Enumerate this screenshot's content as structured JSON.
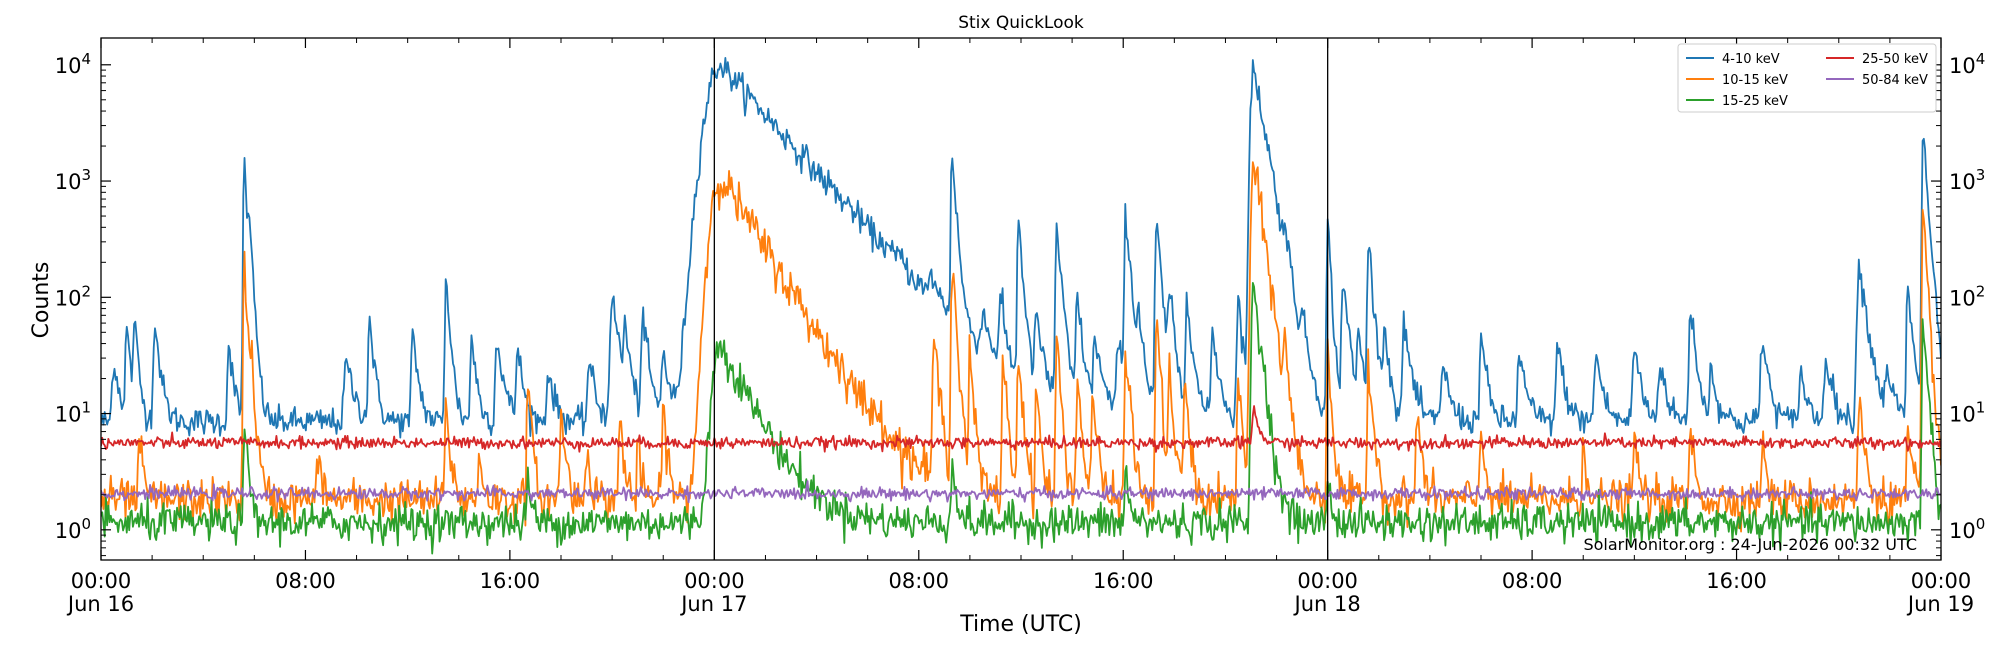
{
  "chart_data": {
    "type": "line",
    "title": "Stix QuickLook",
    "xlabel": "Time (UTC)",
    "ylabel": "Counts",
    "yscale": "log",
    "ylim": [
      0.55,
      17000
    ],
    "y_ticks": [
      {
        "value": 1,
        "base": "10",
        "exp": "0"
      },
      {
        "value": 10,
        "base": "10",
        "exp": "1"
      },
      {
        "value": 100,
        "base": "10",
        "exp": "2"
      },
      {
        "value": 1000,
        "base": "10",
        "exp": "3"
      },
      {
        "value": 10000,
        "base": "10",
        "exp": "4"
      }
    ],
    "x_range": [
      "Jun 16 00:00",
      "Jun 19 00:00"
    ],
    "x_ticks": [
      {
        "hour": 0,
        "time": "00:00",
        "date": "Jun 16"
      },
      {
        "hour": 8,
        "time": "08:00",
        "date": ""
      },
      {
        "hour": 16,
        "time": "16:00",
        "date": ""
      },
      {
        "hour": 24,
        "time": "00:00",
        "date": "Jun 17"
      },
      {
        "hour": 32,
        "time": "08:00",
        "date": ""
      },
      {
        "hour": 40,
        "time": "16:00",
        "date": ""
      },
      {
        "hour": 48,
        "time": "00:00",
        "date": "Jun 18"
      },
      {
        "hour": 56,
        "time": "08:00",
        "date": ""
      },
      {
        "hour": 64,
        "time": "16:00",
        "date": ""
      },
      {
        "hour": 72,
        "time": "00:00",
        "date": "Jun 19"
      }
    ],
    "day_boundaries": [
      "Jun 17 00:00",
      "Jun 18 00:00"
    ],
    "grid": false,
    "legend_position": "top-right",
    "annotation": "SolarMonitor.org : 24-Jun-2026 00:32 UTC",
    "series": [
      {
        "name": "4-10 keV",
        "color": "#1f77b4",
        "baseline": 8.5,
        "noise": 0.06,
        "peaks": [
          {
            "h": 0.5,
            "a": 20,
            "w": 0.1
          },
          {
            "h": 1.0,
            "a": 50,
            "w": 0.06
          },
          {
            "h": 1.3,
            "a": 55,
            "w": 0.06
          },
          {
            "h": 2.1,
            "a": 55,
            "w": 0.08
          },
          {
            "h": 5.0,
            "a": 35,
            "w": 0.07
          },
          {
            "h": 5.6,
            "a": 1600,
            "w": 0.05
          },
          {
            "h": 5.8,
            "a": 200,
            "w": 0.06
          },
          {
            "h": 9.6,
            "a": 20,
            "w": 0.12
          },
          {
            "h": 10.5,
            "a": 60,
            "w": 0.07
          },
          {
            "h": 12.2,
            "a": 40,
            "w": 0.08
          },
          {
            "h": 13.5,
            "a": 150,
            "w": 0.06
          },
          {
            "h": 14.5,
            "a": 40,
            "w": 0.07
          },
          {
            "h": 15.5,
            "a": 35,
            "w": 0.1
          },
          {
            "h": 16.3,
            "a": 30,
            "w": 0.08
          },
          {
            "h": 17.5,
            "a": 15,
            "w": 0.1
          },
          {
            "h": 19.1,
            "a": 20,
            "w": 0.1
          },
          {
            "h": 20.0,
            "a": 90,
            "w": 0.12
          },
          {
            "h": 20.5,
            "a": 40,
            "w": 0.08
          },
          {
            "h": 21.2,
            "a": 60,
            "w": 0.09
          },
          {
            "h": 22.0,
            "a": 25,
            "w": 0.1
          },
          {
            "h": 23.9,
            "a": 80,
            "w": 0.06
          },
          {
            "h": 24.25,
            "a": 10000,
            "w": 0.8
          },
          {
            "h": 25.6,
            "a": 30,
            "w": 0.15
          },
          {
            "h": 26.6,
            "a": 15,
            "w": 0.1
          },
          {
            "h": 27.5,
            "a": 20,
            "w": 0.12
          },
          {
            "h": 28.5,
            "a": 30,
            "w": 0.12
          },
          {
            "h": 29.3,
            "a": 40,
            "w": 0.09
          },
          {
            "h": 30.6,
            "a": 20,
            "w": 0.12
          },
          {
            "h": 31.2,
            "a": 40,
            "w": 0.1
          },
          {
            "h": 32.5,
            "a": 60,
            "w": 0.12
          },
          {
            "h": 33.3,
            "a": 1800,
            "w": 0.06
          },
          {
            "h": 34.5,
            "a": 40,
            "w": 0.1
          },
          {
            "h": 35.2,
            "a": 80,
            "w": 0.07
          },
          {
            "h": 35.9,
            "a": 500,
            "w": 0.06
          },
          {
            "h": 36.6,
            "a": 60,
            "w": 0.08
          },
          {
            "h": 37.4,
            "a": 400,
            "w": 0.07
          },
          {
            "h": 38.2,
            "a": 90,
            "w": 0.08
          },
          {
            "h": 38.9,
            "a": 35,
            "w": 0.1
          },
          {
            "h": 39.8,
            "a": 35,
            "w": 0.08
          },
          {
            "h": 40.1,
            "a": 550,
            "w": 0.07
          },
          {
            "h": 40.6,
            "a": 60,
            "w": 0.08
          },
          {
            "h": 41.3,
            "a": 450,
            "w": 0.07
          },
          {
            "h": 41.8,
            "a": 100,
            "w": 0.08
          },
          {
            "h": 42.5,
            "a": 100,
            "w": 0.08
          },
          {
            "h": 43.5,
            "a": 40,
            "w": 0.1
          },
          {
            "h": 44.5,
            "a": 90,
            "w": 0.08
          },
          {
            "h": 45.1,
            "a": 10000,
            "w": 0.15
          },
          {
            "h": 45.6,
            "a": 300,
            "w": 0.1
          },
          {
            "h": 46.3,
            "a": 200,
            "w": 0.08
          },
          {
            "h": 47.0,
            "a": 30,
            "w": 0.1
          },
          {
            "h": 48.0,
            "a": 450,
            "w": 0.05
          },
          {
            "h": 48.6,
            "a": 150,
            "w": 0.08
          },
          {
            "h": 49.2,
            "a": 40,
            "w": 0.08
          },
          {
            "h": 49.6,
            "a": 300,
            "w": 0.07
          },
          {
            "h": 50.2,
            "a": 50,
            "w": 0.08
          },
          {
            "h": 51.0,
            "a": 50,
            "w": 0.1
          },
          {
            "h": 52.5,
            "a": 20,
            "w": 0.1
          },
          {
            "h": 54.0,
            "a": 40,
            "w": 0.08
          },
          {
            "h": 55.5,
            "a": 25,
            "w": 0.1
          },
          {
            "h": 57.0,
            "a": 30,
            "w": 0.1
          },
          {
            "h": 58.5,
            "a": 25,
            "w": 0.1
          },
          {
            "h": 60.0,
            "a": 30,
            "w": 0.1
          },
          {
            "h": 61.0,
            "a": 20,
            "w": 0.1
          },
          {
            "h": 62.2,
            "a": 80,
            "w": 0.08
          },
          {
            "h": 63.0,
            "a": 15,
            "w": 0.1
          },
          {
            "h": 65.0,
            "a": 35,
            "w": 0.1
          },
          {
            "h": 66.5,
            "a": 15,
            "w": 0.1
          },
          {
            "h": 67.5,
            "a": 25,
            "w": 0.1
          },
          {
            "h": 68.8,
            "a": 180,
            "w": 0.12
          },
          {
            "h": 69.9,
            "a": 15,
            "w": 0.1
          },
          {
            "h": 70.7,
            "a": 120,
            "w": 0.07
          },
          {
            "h": 71.3,
            "a": 2900,
            "w": 0.06
          },
          {
            "h": 71.7,
            "a": 40,
            "w": 0.08
          }
        ]
      },
      {
        "name": "10-15 keV",
        "color": "#ff7f0e",
        "baseline": 1.8,
        "noise": 0.09,
        "peaks": [
          {
            "h": 1.5,
            "a": 4,
            "w": 0.06
          },
          {
            "h": 5.6,
            "a": 210,
            "w": 0.05
          },
          {
            "h": 5.9,
            "a": 15,
            "w": 0.06
          },
          {
            "h": 8.5,
            "a": 3,
            "w": 0.06
          },
          {
            "h": 13.5,
            "a": 10,
            "w": 0.06
          },
          {
            "h": 14.8,
            "a": 3,
            "w": 0.06
          },
          {
            "h": 16.7,
            "a": 20,
            "w": 0.05
          },
          {
            "h": 18.0,
            "a": 10,
            "w": 0.06
          },
          {
            "h": 19.0,
            "a": 4,
            "w": 0.06
          },
          {
            "h": 20.3,
            "a": 8,
            "w": 0.06
          },
          {
            "h": 21.0,
            "a": 3,
            "w": 0.06
          },
          {
            "h": 22.0,
            "a": 10,
            "w": 0.06
          },
          {
            "h": 23.9,
            "a": 10,
            "w": 0.06
          },
          {
            "h": 24.25,
            "a": 1100,
            "w": 0.55
          },
          {
            "h": 26.5,
            "a": 4,
            "w": 0.06
          },
          {
            "h": 29.0,
            "a": 6,
            "w": 0.06
          },
          {
            "h": 30.5,
            "a": 4,
            "w": 0.06
          },
          {
            "h": 32.6,
            "a": 40,
            "w": 0.08
          },
          {
            "h": 33.3,
            "a": 210,
            "w": 0.06
          },
          {
            "h": 34.0,
            "a": 30,
            "w": 0.06
          },
          {
            "h": 35.3,
            "a": 30,
            "w": 0.06
          },
          {
            "h": 35.9,
            "a": 35,
            "w": 0.06
          },
          {
            "h": 36.6,
            "a": 15,
            "w": 0.06
          },
          {
            "h": 37.4,
            "a": 40,
            "w": 0.06
          },
          {
            "h": 38.2,
            "a": 20,
            "w": 0.06
          },
          {
            "h": 38.8,
            "a": 15,
            "w": 0.06
          },
          {
            "h": 40.1,
            "a": 40,
            "w": 0.06
          },
          {
            "h": 41.3,
            "a": 60,
            "w": 0.06
          },
          {
            "h": 41.8,
            "a": 20,
            "w": 0.06
          },
          {
            "h": 42.4,
            "a": 20,
            "w": 0.06
          },
          {
            "h": 44.5,
            "a": 20,
            "w": 0.06
          },
          {
            "h": 45.1,
            "a": 1500,
            "w": 0.12
          },
          {
            "h": 45.6,
            "a": 50,
            "w": 0.08
          },
          {
            "h": 46.3,
            "a": 30,
            "w": 0.06
          },
          {
            "h": 48.0,
            "a": 40,
            "w": 0.05
          },
          {
            "h": 49.6,
            "a": 30,
            "w": 0.06
          },
          {
            "h": 51.5,
            "a": 10,
            "w": 0.06
          },
          {
            "h": 54.0,
            "a": 6,
            "w": 0.06
          },
          {
            "h": 58.0,
            "a": 4,
            "w": 0.06
          },
          {
            "h": 60.0,
            "a": 5,
            "w": 0.06
          },
          {
            "h": 62.2,
            "a": 6,
            "w": 0.06
          },
          {
            "h": 65.0,
            "a": 4,
            "w": 0.06
          },
          {
            "h": 68.8,
            "a": 10,
            "w": 0.08
          },
          {
            "h": 70.7,
            "a": 6,
            "w": 0.06
          },
          {
            "h": 71.3,
            "a": 450,
            "w": 0.06
          }
        ]
      },
      {
        "name": "15-25 keV",
        "color": "#2ca02c",
        "baseline": 1.15,
        "noise": 0.08,
        "peaks": [
          {
            "h": 5.6,
            "a": 8,
            "w": 0.05
          },
          {
            "h": 16.7,
            "a": 2,
            "w": 0.05
          },
          {
            "h": 24.25,
            "a": 38,
            "w": 0.45
          },
          {
            "h": 33.3,
            "a": 3,
            "w": 0.06
          },
          {
            "h": 40.1,
            "a": 2,
            "w": 0.06
          },
          {
            "h": 45.1,
            "a": 140,
            "w": 0.1
          },
          {
            "h": 48.0,
            "a": 2,
            "w": 0.05
          },
          {
            "h": 71.3,
            "a": 70,
            "w": 0.06
          }
        ]
      },
      {
        "name": "25-50 keV",
        "color": "#d62728",
        "baseline": 5.6,
        "noise": 0.025,
        "peaks": [
          {
            "h": 45.1,
            "a": 6,
            "w": 0.08
          }
        ]
      },
      {
        "name": "50-84 keV",
        "color": "#9467bd",
        "baseline": 2.05,
        "noise": 0.025,
        "peaks": []
      }
    ]
  }
}
